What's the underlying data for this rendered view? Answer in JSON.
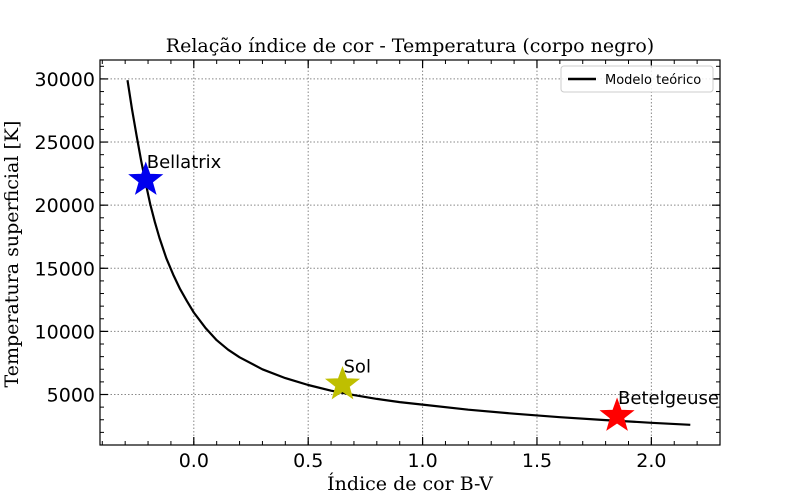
{
  "chart_data": {
    "type": "scatter",
    "title": "Relação índice de cor - Temperatura (corpo negro)",
    "xlabel": "Índice de cor B-V",
    "ylabel": "Temperatura superficial [K]",
    "xlim": [
      -0.41,
      2.3
    ],
    "ylim": [
      1000,
      31500
    ],
    "x_ticks": [
      0.0,
      0.5,
      1.0,
      1.5,
      2.0
    ],
    "x_tick_labels": [
      "0.0",
      "0.5",
      "1.0",
      "1.5",
      "2.0"
    ],
    "y_ticks": [
      5000,
      10000,
      15000,
      20000,
      25000,
      30000
    ],
    "y_tick_labels": [
      "5000",
      "10000",
      "15000",
      "20000",
      "25000",
      "30000"
    ],
    "grid": true,
    "legend": {
      "location": "top-right",
      "entries": [
        "Modelo teórico"
      ]
    },
    "series": [
      {
        "name": "Modelo teórico",
        "kind": "line",
        "color": "#000000",
        "x": [
          -0.29,
          -0.27,
          -0.25,
          -0.23,
          -0.21,
          -0.19,
          -0.17,
          -0.15,
          -0.12,
          -0.09,
          -0.06,
          -0.03,
          0.0,
          0.05,
          0.1,
          0.15,
          0.2,
          0.3,
          0.4,
          0.5,
          0.6,
          0.7,
          0.8,
          0.9,
          1.0,
          1.2,
          1.4,
          1.6,
          1.8,
          2.0,
          2.17
        ],
        "y": [
          29900,
          27600,
          25500,
          23500,
          21700,
          20050,
          18650,
          17400,
          15800,
          14500,
          13350,
          12400,
          11500,
          10300,
          9300,
          8550,
          7950,
          7000,
          6300,
          5750,
          5300,
          4950,
          4650,
          4400,
          4200,
          3800,
          3480,
          3200,
          2970,
          2760,
          2600
        ]
      }
    ],
    "points": [
      {
        "label": "Bellatrix",
        "x": -0.21,
        "y": 22000,
        "color": "#0000ee",
        "marker": "star"
      },
      {
        "label": "Sol",
        "x": 0.65,
        "y": 5800,
        "color": "#bfbf00",
        "marker": "star"
      },
      {
        "label": "Betelgeuse",
        "x": 1.85,
        "y": 3300,
        "color": "#ff0000",
        "marker": "star"
      }
    ]
  }
}
